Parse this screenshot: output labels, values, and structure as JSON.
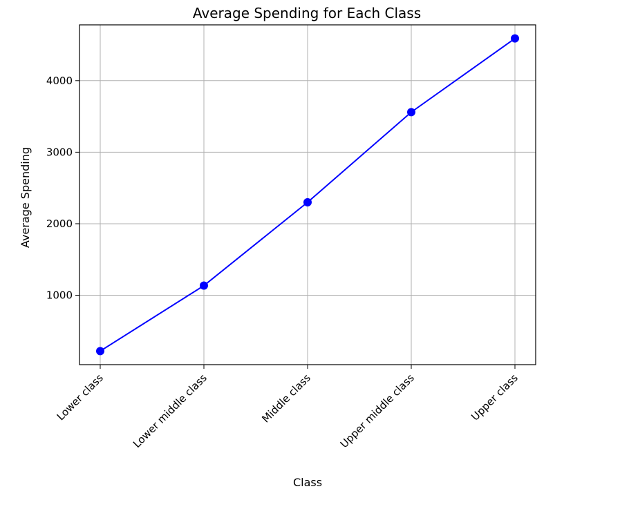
{
  "chart_data": {
    "type": "line",
    "title": "Average Spending for Each Class",
    "xlabel": "Class",
    "ylabel": "Average Spending",
    "categories": [
      "Lower class",
      "Lower middle class",
      "Middle class",
      "Upper middle class",
      "Upper class"
    ],
    "series": [
      {
        "values": [
          220,
          1135,
          2300,
          3560,
          4590
        ]
      }
    ],
    "yticks": [
      1000,
      2000,
      3000,
      4000
    ],
    "ylim": [
      30,
      4780
    ],
    "grid": true,
    "line_color": "#0000ff",
    "marker": "circle"
  }
}
